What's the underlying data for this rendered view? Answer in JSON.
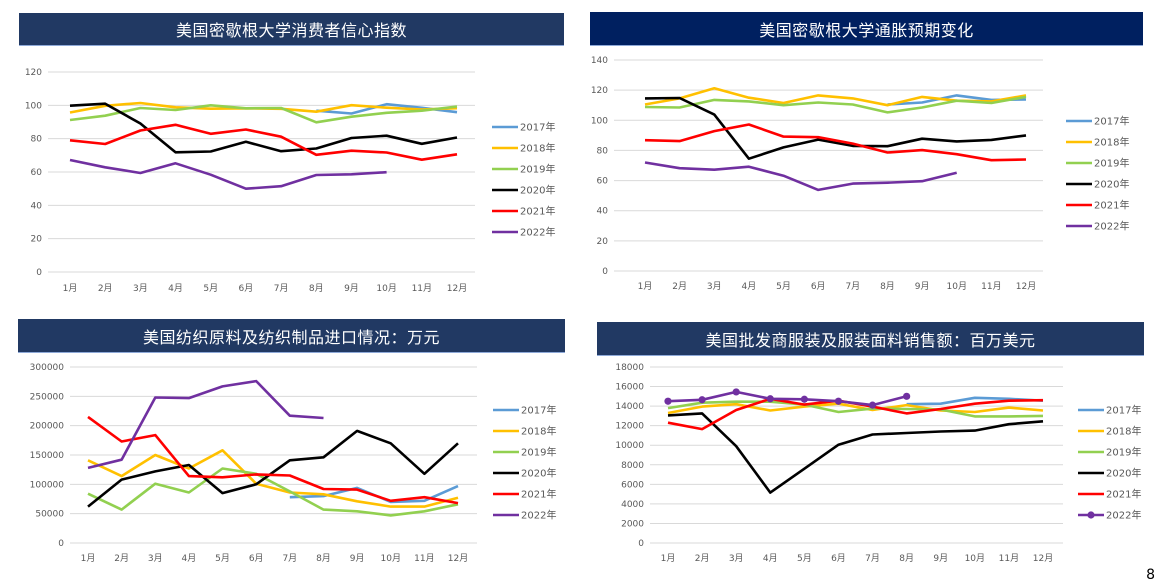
{
  "page_number": "8",
  "colors": {
    "2017年": "#5b9bd5",
    "2018年": "#ffc000",
    "2019年": "#92d050",
    "2020年": "#000000",
    "2021年": "#ff0000",
    "2022年": "#7030a0",
    "title_bar_1": "#213963",
    "title_bar_2": "#002060",
    "grid": "#d9d9d9"
  },
  "chart_data": [
    {
      "id": "c1",
      "type": "line",
      "title": "美国密歇根大学消费者信心指数",
      "categories": [
        "1月",
        "2月",
        "3月",
        "4月",
        "5月",
        "6月",
        "7月",
        "8月",
        "9月",
        "10月",
        "11月",
        "12月"
      ],
      "ylim": [
        0,
        120
      ],
      "yticks": [
        "0",
        "20",
        "40",
        "60",
        "80",
        "100",
        "120"
      ],
      "grid": true,
      "legend": "right",
      "series": [
        {
          "name": "2017年",
          "values": [
            null,
            null,
            null,
            null,
            null,
            null,
            null,
            96.8,
            95.1,
            100.7,
            98.5,
            95.9
          ]
        },
        {
          "name": "2018年",
          "values": [
            95.7,
            99.7,
            101.4,
            98.8,
            98.0,
            98.2,
            97.9,
            96.2,
            100.1,
            98.6,
            97.5,
            98.3
          ]
        },
        {
          "name": "2019年",
          "values": [
            91.2,
            93.8,
            98.4,
            97.2,
            100.0,
            98.2,
            98.4,
            89.8,
            93.2,
            95.5,
            96.8,
            99.3
          ]
        },
        {
          "name": "2020年",
          "values": [
            99.8,
            101.0,
            89.1,
            71.8,
            72.3,
            78.1,
            72.5,
            74.1,
            80.4,
            81.8,
            76.9,
            80.7
          ]
        },
        {
          "name": "2021年",
          "values": [
            79.0,
            76.8,
            84.9,
            88.3,
            82.9,
            85.5,
            81.2,
            70.3,
            72.8,
            71.7,
            67.4,
            70.6
          ]
        },
        {
          "name": "2022年",
          "values": [
            67.2,
            62.8,
            59.4,
            65.2,
            58.4,
            50.0,
            51.5,
            58.2,
            58.6,
            59.9,
            null,
            null
          ]
        }
      ]
    },
    {
      "id": "c2",
      "type": "line",
      "title": "美国密歇根大学通胀预期变化",
      "categories": [
        "1月",
        "2月",
        "3月",
        "4月",
        "5月",
        "6月",
        "7月",
        "8月",
        "9月",
        "10月",
        "11月",
        "12月"
      ],
      "ylim": [
        0,
        140
      ],
      "yticks": [
        "0",
        "20",
        "40",
        "60",
        "80",
        "100",
        "120",
        "140"
      ],
      "grid": true,
      "legend": "right",
      "series": [
        {
          "name": "2017年",
          "values": [
            null,
            null,
            null,
            null,
            null,
            null,
            null,
            110.5,
            111.8,
            116.5,
            113.5,
            113.8
          ]
        },
        {
          "name": "2018年",
          "values": [
            110.5,
            114.5,
            121.2,
            115.0,
            111.5,
            116.5,
            114.5,
            110.0,
            115.5,
            113.0,
            112.5,
            116.5
          ]
        },
        {
          "name": "2019年",
          "values": [
            108.8,
            108.5,
            113.5,
            112.5,
            110.0,
            111.8,
            110.5,
            105.2,
            108.5,
            113.0,
            111.5,
            115.5
          ]
        },
        {
          "name": "2020年",
          "values": [
            114.5,
            114.8,
            103.8,
            74.5,
            82.0,
            87.2,
            83.0,
            82.8,
            87.8,
            86.0,
            87.0,
            90.0
          ]
        },
        {
          "name": "2021年",
          "values": [
            86.8,
            86.2,
            92.8,
            97.2,
            89.2,
            88.8,
            84.5,
            78.6,
            80.2,
            77.5,
            73.5,
            74.0
          ]
        },
        {
          "name": "2022年",
          "values": [
            72.0,
            68.2,
            67.2,
            69.2,
            63.2,
            53.8,
            58.0,
            58.6,
            59.6,
            65.2,
            null,
            null
          ]
        }
      ]
    },
    {
      "id": "c3",
      "type": "line",
      "title": "美国纺织原料及纺织制品进口情况：万元",
      "categories": [
        "1月",
        "2月",
        "3月",
        "4月",
        "5月",
        "6月",
        "7月",
        "8月",
        "9月",
        "10月",
        "11月",
        "12月"
      ],
      "ylim": [
        0,
        300000
      ],
      "yticks": [
        "0",
        "50000",
        "100000",
        "150000",
        "200000",
        "250000",
        "300000"
      ],
      "grid": true,
      "legend": "right",
      "series": [
        {
          "name": "2017年",
          "values": [
            null,
            null,
            null,
            null,
            null,
            null,
            78000,
            80000,
            94000,
            70000,
            72000,
            97000
          ]
        },
        {
          "name": "2018年",
          "values": [
            141000,
            114000,
            150000,
            127000,
            158000,
            101000,
            86000,
            83000,
            71000,
            62000,
            62000,
            77000
          ]
        },
        {
          "name": "2019年",
          "values": [
            84000,
            57000,
            101000,
            86000,
            127000,
            118000,
            88000,
            57000,
            54000,
            47000,
            54000,
            66000
          ]
        },
        {
          "name": "2020年",
          "values": [
            62000,
            108000,
            122000,
            133000,
            85000,
            100000,
            141000,
            146000,
            191000,
            170000,
            118000,
            170000
          ]
        },
        {
          "name": "2021年",
          "values": [
            215000,
            173000,
            184000,
            114000,
            112000,
            117000,
            115000,
            92000,
            91000,
            72000,
            78000,
            68000
          ]
        },
        {
          "name": "2022年",
          "values": [
            128000,
            142000,
            248000,
            247000,
            267000,
            276000,
            217000,
            213000,
            null,
            null,
            null,
            null
          ]
        }
      ]
    },
    {
      "id": "c4",
      "type": "line",
      "title": "美国批发商服装及服装面料销售额：百万美元",
      "categories": [
        "1月",
        "2月",
        "3月",
        "4月",
        "5月",
        "6月",
        "7月",
        "8月",
        "9月",
        "10月",
        "11月",
        "12月"
      ],
      "ylim": [
        0,
        18000
      ],
      "yticks": [
        "0",
        "2000",
        "4000",
        "6000",
        "8000",
        "10000",
        "12000",
        "14000",
        "16000",
        "18000"
      ],
      "grid": true,
      "legend": "right",
      "series": [
        {
          "name": "2017年",
          "values": [
            null,
            null,
            null,
            null,
            null,
            null,
            null,
            14200,
            14250,
            14850,
            14750,
            14550
          ]
        },
        {
          "name": "2018年",
          "values": [
            13300,
            13950,
            14200,
            13550,
            13950,
            14250,
            13600,
            14100,
            13550,
            13400,
            13850,
            13550
          ]
        },
        {
          "name": "2019年",
          "values": [
            13800,
            14350,
            14450,
            14450,
            14150,
            13400,
            13750,
            13700,
            13650,
            12950,
            12950,
            13000
          ]
        },
        {
          "name": "2020年",
          "values": [
            13050,
            13250,
            9900,
            5150,
            7600,
            10050,
            11100,
            11250,
            11400,
            11500,
            12150,
            12450
          ]
        },
        {
          "name": "2021年",
          "values": [
            12300,
            11650,
            13600,
            14750,
            14150,
            14550,
            13950,
            13250,
            13700,
            14250,
            14550,
            14600
          ]
        },
        {
          "name": "2022年",
          "values": [
            14500,
            14650,
            15450,
            14750,
            14700,
            14500,
            14100,
            15000,
            null,
            null,
            null,
            null
          ],
          "markers": true
        }
      ]
    }
  ]
}
